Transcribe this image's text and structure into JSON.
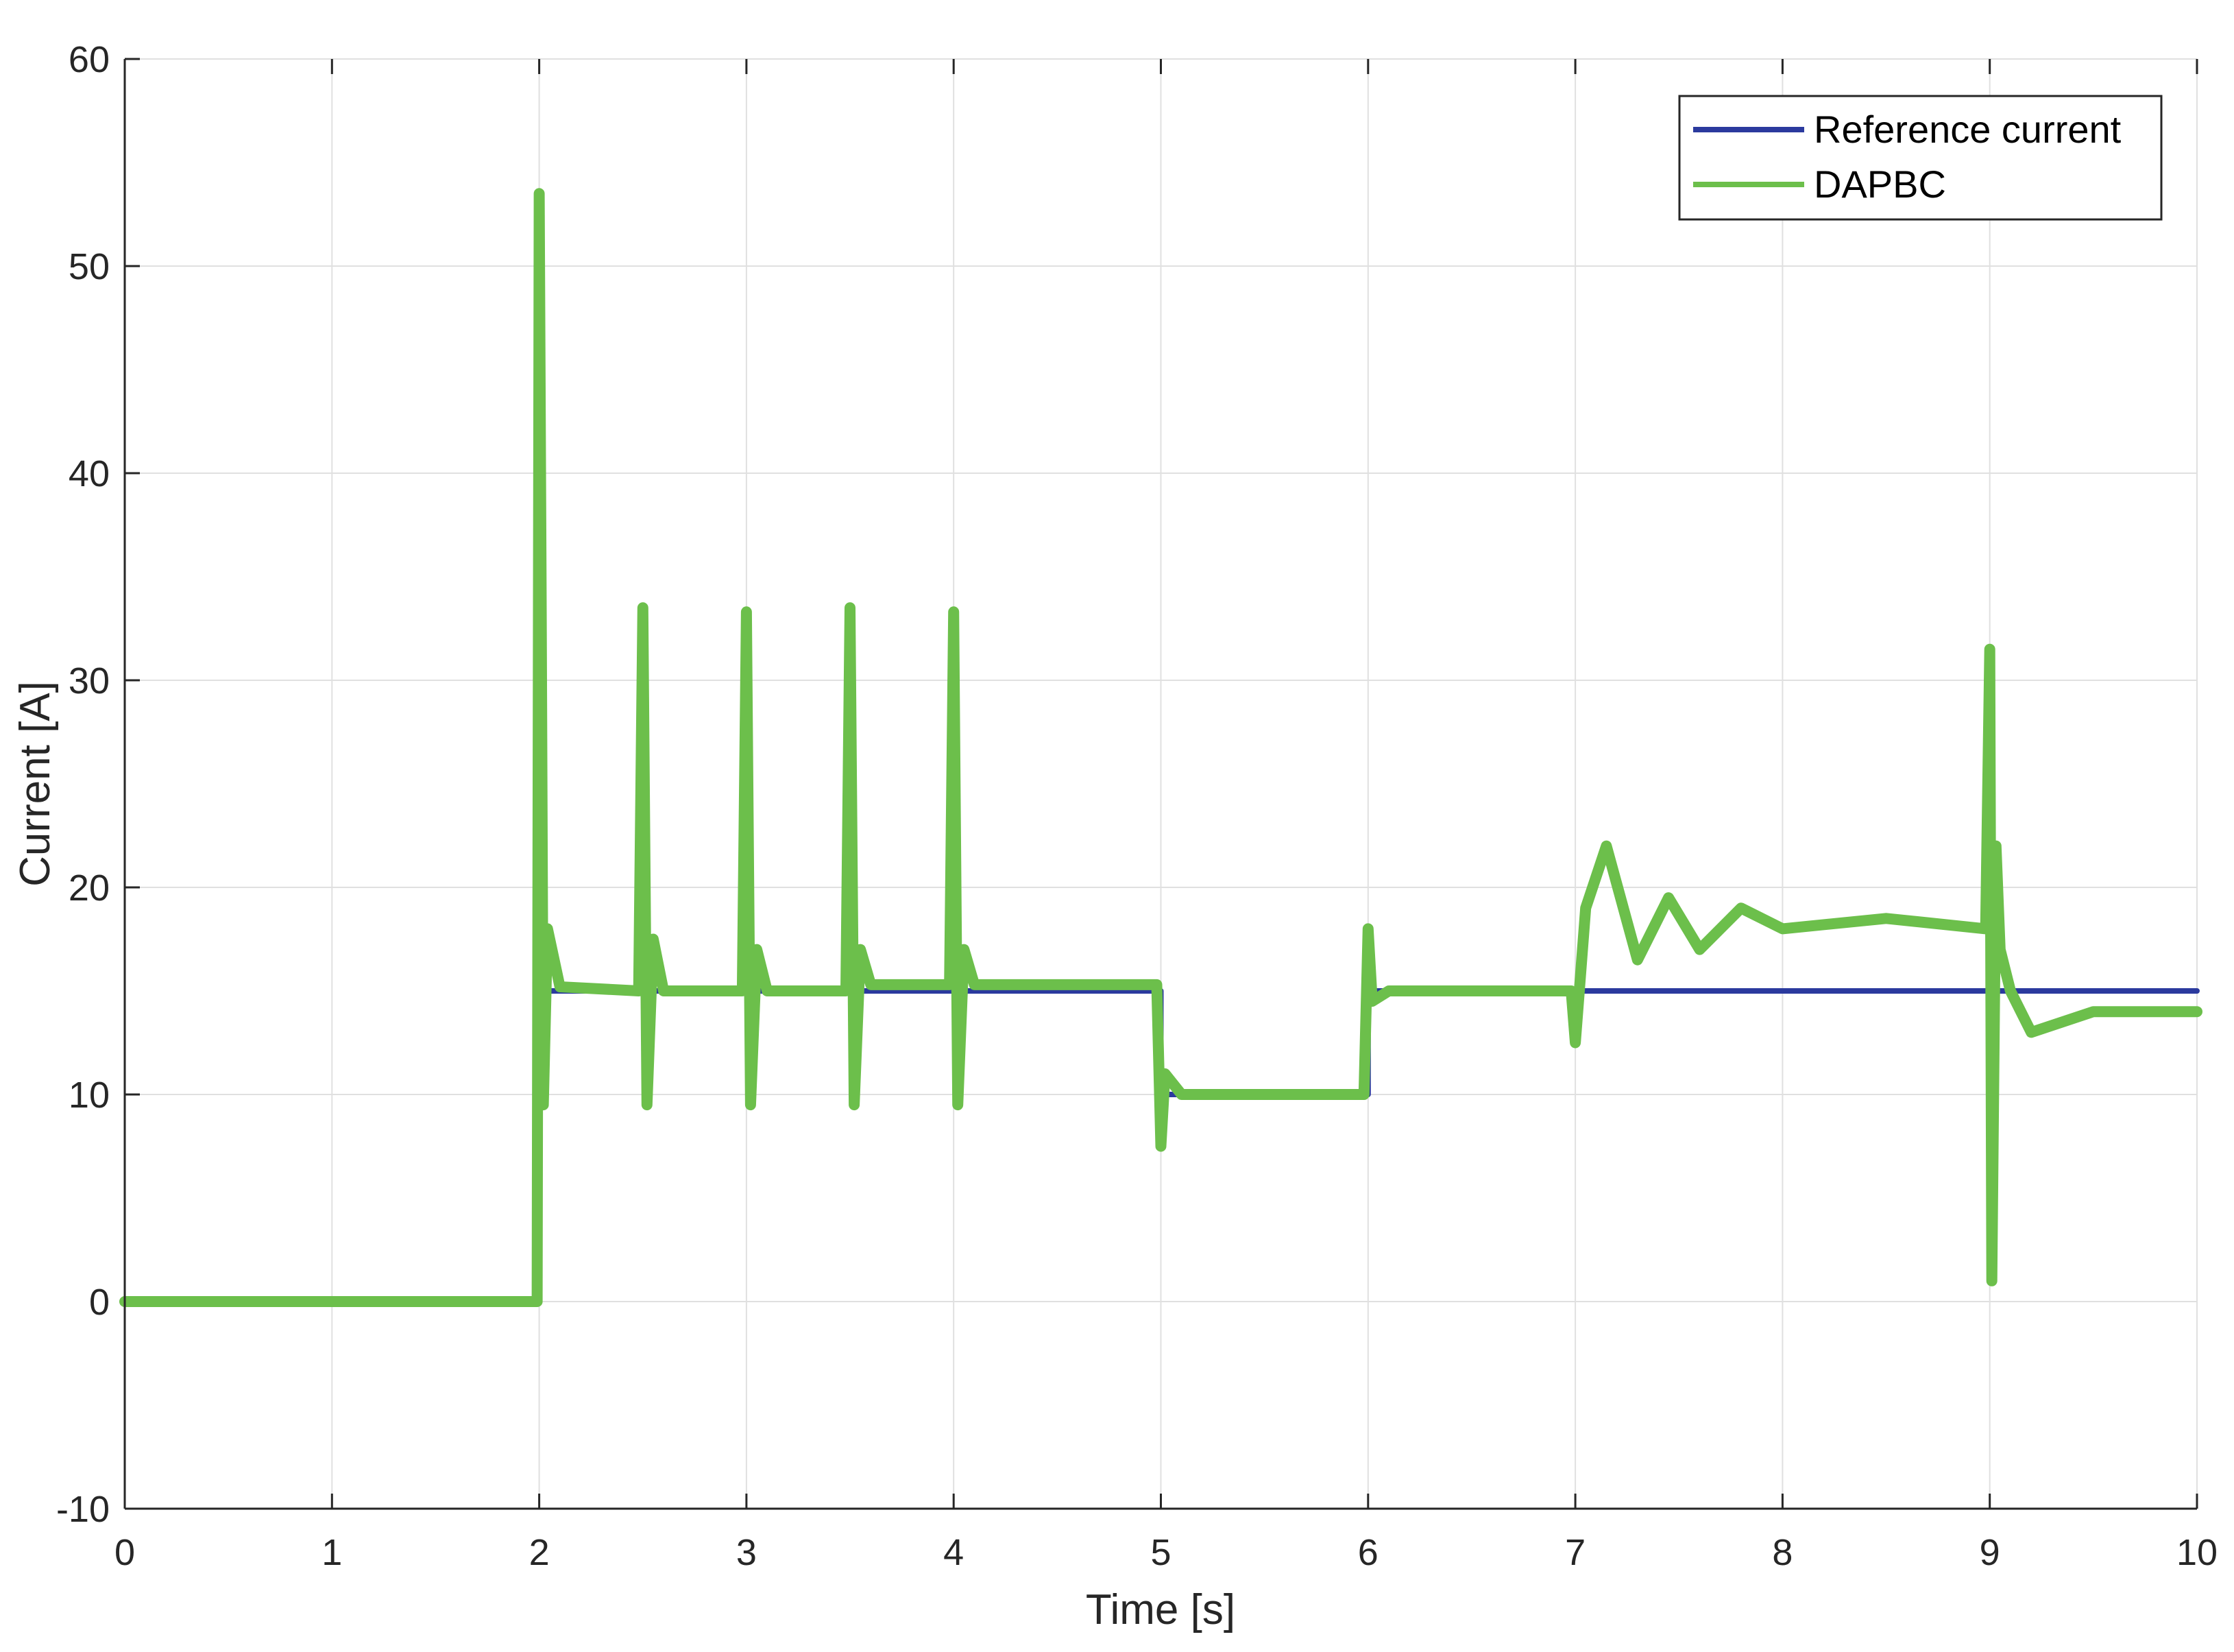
{
  "chart_data": {
    "type": "line",
    "xlabel": "Time [s]",
    "ylabel": "Current [A]",
    "xlim": [
      0,
      10
    ],
    "ylim": [
      -10,
      60
    ],
    "xticks": [
      0,
      1,
      2,
      3,
      4,
      5,
      6,
      7,
      8,
      9,
      10
    ],
    "yticks": [
      -10,
      0,
      10,
      20,
      30,
      40,
      50,
      60
    ],
    "xtick_labels": [
      "0",
      "1",
      "2",
      "3",
      "4",
      "5",
      "6",
      "7",
      "8",
      "9",
      "10"
    ],
    "ytick_labels": [
      "-10",
      "0",
      "10",
      "20",
      "30",
      "40",
      "50",
      "60"
    ],
    "grid": true,
    "legend_position": "top-right",
    "series": [
      {
        "name": "Reference current",
        "color": "#2b3a9e",
        "x": [
          0,
          2,
          2,
          5,
          5,
          6,
          6,
          10
        ],
        "y": [
          0,
          0,
          15,
          15,
          10,
          10,
          15,
          15
        ]
      },
      {
        "name": "DAPBC",
        "color": "#6cbf4b",
        "x": [
          0,
          1.99,
          2.0,
          2.01,
          2.02,
          2.04,
          2.1,
          2.48,
          2.5,
          2.52,
          2.55,
          2.6,
          2.98,
          3.0,
          3.02,
          3.05,
          3.1,
          3.48,
          3.5,
          3.52,
          3.55,
          3.6,
          3.98,
          4.0,
          4.02,
          4.05,
          4.1,
          4.98,
          5.0,
          5.02,
          5.1,
          5.98,
          6.0,
          6.02,
          6.1,
          6.98,
          7.0,
          7.05,
          7.15,
          7.3,
          7.45,
          7.6,
          7.8,
          8.0,
          8.5,
          8.98,
          9.0,
          9.01,
          9.03,
          9.05,
          9.1,
          9.2,
          9.5,
          10.0
        ],
        "y": [
          0,
          0,
          53.5,
          33,
          9.5,
          18,
          15.2,
          15,
          33.5,
          9.5,
          17.5,
          15,
          15,
          33.3,
          9.5,
          17,
          15,
          15,
          33.5,
          9.5,
          17,
          15.3,
          15.3,
          33.3,
          9.5,
          17,
          15.3,
          15.3,
          7.5,
          11,
          10,
          10,
          18,
          14.5,
          15,
          15,
          12.5,
          19,
          22,
          16.5,
          19.5,
          17,
          19,
          18,
          18.5,
          18,
          31.5,
          1,
          22,
          17,
          15,
          13,
          14,
          14
        ]
      }
    ]
  }
}
